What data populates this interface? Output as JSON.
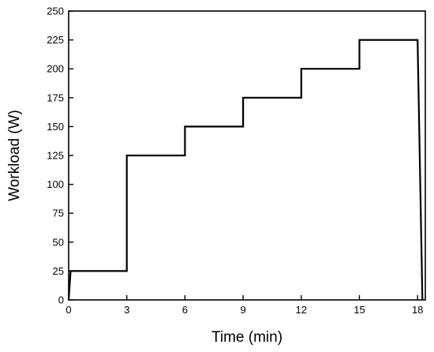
{
  "chart_data": {
    "type": "line",
    "title": "",
    "xlabel": "Time (min)",
    "ylabel": "Workload (W)",
    "xlim": [
      0,
      18.4
    ],
    "ylim": [
      0,
      250
    ],
    "xticks": [
      0,
      3,
      6,
      9,
      12,
      15,
      18
    ],
    "yticks": [
      0,
      25,
      50,
      75,
      100,
      125,
      150,
      175,
      200,
      225,
      250
    ],
    "grid": false,
    "legend": "none",
    "line_color": "#000000",
    "series": [
      {
        "x": [
          0,
          0.1,
          3,
          3,
          6,
          6,
          9,
          9,
          12,
          12,
          15,
          15,
          18,
          18.25
        ],
        "y": [
          0,
          25,
          25,
          125,
          125,
          150,
          150,
          175,
          175,
          200,
          200,
          225,
          225,
          0
        ]
      }
    ]
  }
}
